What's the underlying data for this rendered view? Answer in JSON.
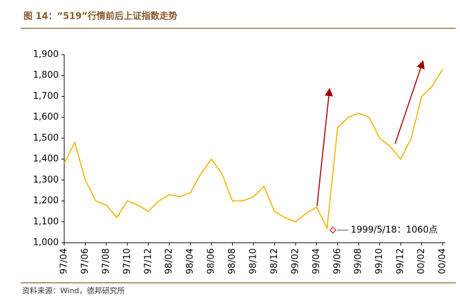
{
  "chart_data": {
    "type": "line",
    "title": "图 14：“519”行情前后上证指数走势",
    "source": "资料来源：Wind，德邦研究所",
    "categories": [
      "97/04",
      null,
      "97/06",
      null,
      "97/08",
      null,
      "97/10",
      null,
      "97/12",
      null,
      "98/02",
      null,
      "98/04",
      null,
      "98/06",
      null,
      "98/08",
      null,
      "98/10",
      null,
      "98/12",
      null,
      "99/02",
      null,
      "99/04",
      null,
      "99/06",
      null,
      "99/08",
      null,
      "99/10",
      null,
      "99/12",
      null,
      "00/02",
      null,
      "00/04"
    ],
    "series": [
      {
        "name": "上证指数",
        "color": "#f5b400",
        "values": [
          1380,
          1480,
          1300,
          1200,
          1180,
          1120,
          1200,
          1180,
          1150,
          1200,
          1230,
          1220,
          1240,
          1330,
          1400,
          1330,
          1200,
          1200,
          1220,
          1270,
          1150,
          1120,
          1100,
          1140,
          1170,
          1070,
          1550,
          1600,
          1620,
          1600,
          1500,
          1460,
          1400,
          1500,
          1700,
          1750,
          1830
        ]
      }
    ],
    "annotation": {
      "text": "1999/5/18：1060点",
      "value": 1060
    },
    "ylim": [
      1000,
      1900
    ],
    "yticks": [
      {
        "value": 1000,
        "label": "1,000"
      },
      {
        "value": 1100,
        "label": "1,100"
      },
      {
        "value": 1200,
        "label": "1,200"
      },
      {
        "value": 1300,
        "label": "1,300"
      },
      {
        "value": 1400,
        "label": "1,400"
      },
      {
        "value": 1500,
        "label": "1,500"
      },
      {
        "value": 1600,
        "label": "1,600"
      },
      {
        "value": 1700,
        "label": "1,700"
      },
      {
        "value": 1800,
        "label": "1,800"
      },
      {
        "value": 1900,
        "label": "1,900"
      }
    ],
    "grid": false
  }
}
